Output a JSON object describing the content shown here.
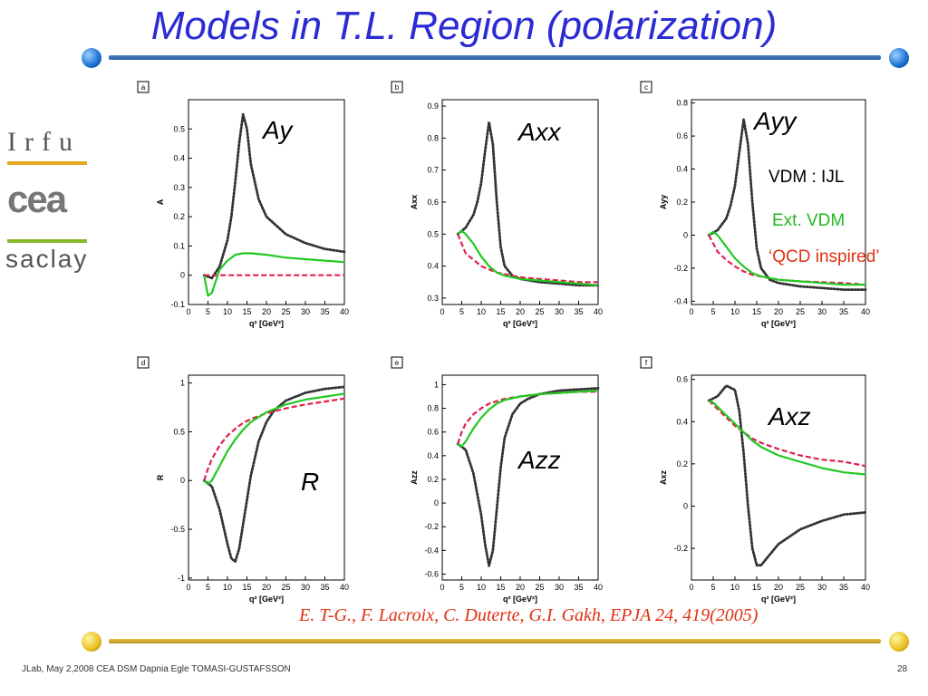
{
  "title": "Models in T.L.  Region (polarization)",
  "logo": {
    "line1": "Irfu",
    "line2": "cea",
    "line3": "saclay"
  },
  "legend": {
    "items": [
      {
        "label": "VDM : IJL",
        "color": "#000000"
      },
      {
        "label": "Ext. VDM",
        "color": "#22b822"
      },
      {
        "label": "‘QCD inspired’",
        "color": "#e03010"
      }
    ]
  },
  "citation": "E. T-G., F. Lacroix, C. Duterte, G.I. Gakh, EPJA 24, 419(2005)",
  "footer": {
    "left": "JLab,  May 2,2008    CEA DSM Dapnia    Egle TOMASI-GUSTAFSSON",
    "page": "28"
  },
  "colors": {
    "title": "#2b2bd4",
    "vdm_ijl": "#333333",
    "ext_vdm": "#22c822",
    "qcd": "#e0204a"
  },
  "chart_data": [
    {
      "type": "line",
      "panel": "a",
      "label": "Ay",
      "ylabel": "A",
      "xlabel": "q² [GeV²]",
      "xlim": [
        0,
        40
      ],
      "ylim": [
        -0.1,
        0.6
      ],
      "xticks": [
        "0",
        "5",
        "10",
        "15",
        "20",
        "25",
        "30",
        "35",
        "40"
      ],
      "yticks": [
        "-0.1",
        "0",
        "0.1",
        "0.2",
        "0.3",
        "0.4",
        "0.5"
      ],
      "ytick_values": [
        -0.1,
        0,
        0.1,
        0.2,
        0.3,
        0.4,
        0.5
      ],
      "series": [
        {
          "name": "VDM : IJL",
          "style": "dotted",
          "x": [
            4,
            6,
            8,
            10,
            11,
            12,
            13,
            14,
            15,
            16,
            18,
            20,
            25,
            30,
            35,
            40
          ],
          "y": [
            0,
            -0.01,
            0.03,
            0.12,
            0.2,
            0.32,
            0.45,
            0.55,
            0.5,
            0.38,
            0.26,
            0.2,
            0.14,
            0.11,
            0.09,
            0.08
          ]
        },
        {
          "name": "Ext. VDM",
          "style": "solid",
          "x": [
            4,
            5,
            6,
            7,
            8,
            10,
            12,
            14,
            16,
            20,
            25,
            30,
            35,
            40
          ],
          "y": [
            0,
            -0.07,
            -0.06,
            -0.02,
            0.02,
            0.05,
            0.07,
            0.075,
            0.075,
            0.07,
            0.06,
            0.055,
            0.05,
            0.045
          ]
        },
        {
          "name": "QCD inspired",
          "style": "dashed",
          "x": [
            4,
            10,
            20,
            30,
            40
          ],
          "y": [
            0,
            0,
            0,
            0,
            0
          ]
        }
      ]
    },
    {
      "type": "line",
      "panel": "b",
      "label": "Axx",
      "ylabel": "Axx",
      "xlabel": "q² [GeV²]",
      "xlim": [
        0,
        40
      ],
      "ylim": [
        0.28,
        0.92
      ],
      "xticks": [
        "0",
        "5",
        "10",
        "15",
        "20",
        "25",
        "30",
        "35",
        "40"
      ],
      "yticks": [
        "0.3",
        "0.4",
        "0.5",
        "0.6",
        "0.7",
        "0.8",
        "0.9"
      ],
      "ytick_values": [
        0.3,
        0.4,
        0.5,
        0.6,
        0.7,
        0.8,
        0.9
      ],
      "series": [
        {
          "name": "VDM : IJL",
          "style": "dotted",
          "x": [
            4,
            6,
            8,
            9,
            10,
            11,
            12,
            13,
            14,
            15,
            16,
            18,
            20,
            25,
            30,
            35,
            40
          ],
          "y": [
            0.5,
            0.52,
            0.56,
            0.6,
            0.66,
            0.76,
            0.85,
            0.78,
            0.6,
            0.46,
            0.4,
            0.37,
            0.36,
            0.35,
            0.345,
            0.34,
            0.34
          ]
        },
        {
          "name": "Ext. VDM",
          "style": "solid",
          "x": [
            4,
            5,
            6,
            8,
            10,
            12,
            14,
            16,
            20,
            25,
            30,
            35,
            40
          ],
          "y": [
            0.5,
            0.51,
            0.5,
            0.47,
            0.43,
            0.4,
            0.38,
            0.37,
            0.36,
            0.355,
            0.35,
            0.345,
            0.34
          ]
        },
        {
          "name": "QCD inspired",
          "style": "dashed",
          "x": [
            4,
            5,
            6,
            8,
            10,
            12,
            14,
            16,
            20,
            25,
            30,
            35,
            40
          ],
          "y": [
            0.5,
            0.47,
            0.44,
            0.42,
            0.4,
            0.39,
            0.38,
            0.375,
            0.365,
            0.36,
            0.355,
            0.35,
            0.35
          ]
        }
      ]
    },
    {
      "type": "line",
      "panel": "c",
      "label": "Ayy",
      "ylabel": "Ayy",
      "xlabel": "q² [GeV²]",
      "xlim": [
        0,
        40
      ],
      "ylim": [
        -0.42,
        0.82
      ],
      "xticks": [
        "0",
        "5",
        "10",
        "15",
        "20",
        "25",
        "30",
        "35",
        "40"
      ],
      "yticks": [
        "-0.4",
        "-0.2",
        "0",
        "0.2",
        "0.4",
        "0.6",
        "0.8"
      ],
      "ytick_values": [
        -0.4,
        -0.2,
        0,
        0.2,
        0.4,
        0.6,
        0.8
      ],
      "series": [
        {
          "name": "VDM : IJL",
          "style": "dotted",
          "x": [
            4,
            6,
            8,
            9,
            10,
            11,
            12,
            13,
            14,
            15,
            16,
            18,
            20,
            25,
            30,
            35,
            40
          ],
          "y": [
            0,
            0.03,
            0.1,
            0.18,
            0.3,
            0.5,
            0.7,
            0.55,
            0.2,
            -0.08,
            -0.2,
            -0.27,
            -0.29,
            -0.31,
            -0.32,
            -0.33,
            -0.33
          ]
        },
        {
          "name": "Ext. VDM",
          "style": "solid",
          "x": [
            4,
            5,
            6,
            8,
            10,
            12,
            14,
            16,
            20,
            25,
            30,
            35,
            40
          ],
          "y": [
            0,
            0.02,
            0,
            -0.07,
            -0.14,
            -0.19,
            -0.23,
            -0.25,
            -0.27,
            -0.28,
            -0.29,
            -0.3,
            -0.3
          ]
        },
        {
          "name": "QCD inspired",
          "style": "dashed",
          "x": [
            4,
            5,
            6,
            8,
            10,
            12,
            14,
            16,
            20,
            25,
            30,
            35,
            40
          ],
          "y": [
            0,
            -0.05,
            -0.1,
            -0.15,
            -0.19,
            -0.22,
            -0.24,
            -0.25,
            -0.27,
            -0.28,
            -0.285,
            -0.29,
            -0.3
          ]
        }
      ]
    },
    {
      "type": "line",
      "panel": "d",
      "label": "R",
      "ylabel": "R",
      "xlabel": "q² [GeV²]",
      "xlim": [
        0,
        40
      ],
      "ylim": [
        -1.02,
        1.08
      ],
      "xticks": [
        "0",
        "5",
        "10",
        "15",
        "20",
        "25",
        "30",
        "35",
        "40"
      ],
      "yticks": [
        "-1",
        "-0.5",
        "0",
        "0.5",
        "1"
      ],
      "ytick_values": [
        -1,
        -0.5,
        0,
        0.5,
        1
      ],
      "series": [
        {
          "name": "VDM : IJL",
          "style": "dotted",
          "x": [
            4,
            6,
            8,
            10,
            11,
            12,
            13,
            14,
            15,
            16,
            18,
            20,
            22,
            25,
            30,
            35,
            40
          ],
          "y": [
            0,
            -0.06,
            -0.3,
            -0.65,
            -0.8,
            -0.83,
            -0.7,
            -0.45,
            -0.2,
            0.05,
            0.4,
            0.6,
            0.72,
            0.82,
            0.9,
            0.94,
            0.96
          ]
        },
        {
          "name": "Ext. VDM",
          "style": "solid",
          "x": [
            4,
            5,
            6,
            8,
            10,
            12,
            14,
            16,
            20,
            25,
            30,
            35,
            40
          ],
          "y": [
            0,
            -0.04,
            0,
            0.15,
            0.3,
            0.42,
            0.52,
            0.6,
            0.7,
            0.78,
            0.83,
            0.86,
            0.89
          ]
        },
        {
          "name": "QCD inspired",
          "style": "dashed",
          "x": [
            4,
            5,
            6,
            8,
            10,
            12,
            14,
            16,
            20,
            25,
            30,
            35,
            40
          ],
          "y": [
            0,
            0.12,
            0.22,
            0.36,
            0.46,
            0.53,
            0.59,
            0.63,
            0.69,
            0.74,
            0.78,
            0.81,
            0.84
          ]
        }
      ]
    },
    {
      "type": "line",
      "panel": "e",
      "label": "Azz",
      "ylabel": "Azz",
      "xlabel": "q² [GeV²]",
      "xlim": [
        0,
        40
      ],
      "ylim": [
        -0.65,
        1.08
      ],
      "xticks": [
        "0",
        "5",
        "10",
        "15",
        "20",
        "25",
        "30",
        "35",
        "40"
      ],
      "yticks": [
        "-0.6",
        "-0.4",
        "-0.2",
        "0",
        "0.2",
        "0.4",
        "0.6",
        "0.8",
        "1"
      ],
      "ytick_values": [
        -0.6,
        -0.4,
        -0.2,
        0,
        0.2,
        0.4,
        0.6,
        0.8,
        1
      ],
      "series": [
        {
          "name": "VDM : IJL",
          "style": "dotted",
          "x": [
            4,
            6,
            8,
            10,
            11,
            12,
            13,
            14,
            15,
            16,
            18,
            20,
            22,
            25,
            30,
            35,
            40
          ],
          "y": [
            0.5,
            0.45,
            0.25,
            -0.1,
            -0.35,
            -0.53,
            -0.4,
            -0.05,
            0.3,
            0.55,
            0.75,
            0.84,
            0.88,
            0.92,
            0.95,
            0.96,
            0.97
          ]
        },
        {
          "name": "Ext. VDM",
          "style": "solid",
          "x": [
            4,
            5,
            6,
            8,
            10,
            12,
            14,
            16,
            20,
            25,
            30,
            35,
            40
          ],
          "y": [
            0.5,
            0.48,
            0.52,
            0.63,
            0.72,
            0.79,
            0.84,
            0.87,
            0.9,
            0.92,
            0.93,
            0.94,
            0.95
          ]
        },
        {
          "name": "QCD inspired",
          "style": "dashed",
          "x": [
            4,
            5,
            6,
            8,
            10,
            12,
            14,
            16,
            20,
            25,
            30,
            35,
            40
          ],
          "y": [
            0.5,
            0.6,
            0.67,
            0.75,
            0.8,
            0.84,
            0.86,
            0.88,
            0.9,
            0.92,
            0.93,
            0.94,
            0.94
          ]
        }
      ]
    },
    {
      "type": "line",
      "panel": "f",
      "label": "Axz",
      "ylabel": "Axz",
      "xlabel": "q² [GeV²]",
      "xlim": [
        0,
        40
      ],
      "ylim": [
        -0.35,
        0.62
      ],
      "xticks": [
        "0",
        "5",
        "10",
        "15",
        "20",
        "25",
        "30",
        "35",
        "40"
      ],
      "yticks": [
        "-0.2",
        "0",
        "0.2",
        "0.4",
        "0.6"
      ],
      "ytick_values": [
        -0.2,
        0,
        0.2,
        0.4,
        0.6
      ],
      "series": [
        {
          "name": "VDM : IJL",
          "style": "dotted",
          "x": [
            4,
            6,
            8,
            10,
            11,
            12,
            13,
            14,
            15,
            16,
            18,
            20,
            25,
            30,
            35,
            40
          ],
          "y": [
            0.5,
            0.52,
            0.57,
            0.55,
            0.45,
            0.25,
            0.0,
            -0.2,
            -0.28,
            -0.28,
            -0.23,
            -0.18,
            -0.11,
            -0.07,
            -0.04,
            -0.03
          ]
        },
        {
          "name": "Ext. VDM",
          "style": "solid",
          "x": [
            4,
            5,
            6,
            8,
            10,
            12,
            14,
            16,
            20,
            25,
            30,
            35,
            40
          ],
          "y": [
            0.5,
            0.49,
            0.47,
            0.43,
            0.39,
            0.35,
            0.31,
            0.28,
            0.24,
            0.21,
            0.18,
            0.16,
            0.15
          ]
        },
        {
          "name": "QCD inspired",
          "style": "dashed",
          "x": [
            4,
            5,
            6,
            8,
            10,
            12,
            14,
            16,
            20,
            25,
            30,
            35,
            40
          ],
          "y": [
            0.5,
            0.48,
            0.46,
            0.42,
            0.38,
            0.35,
            0.32,
            0.3,
            0.27,
            0.24,
            0.22,
            0.21,
            0.19
          ]
        }
      ]
    }
  ]
}
